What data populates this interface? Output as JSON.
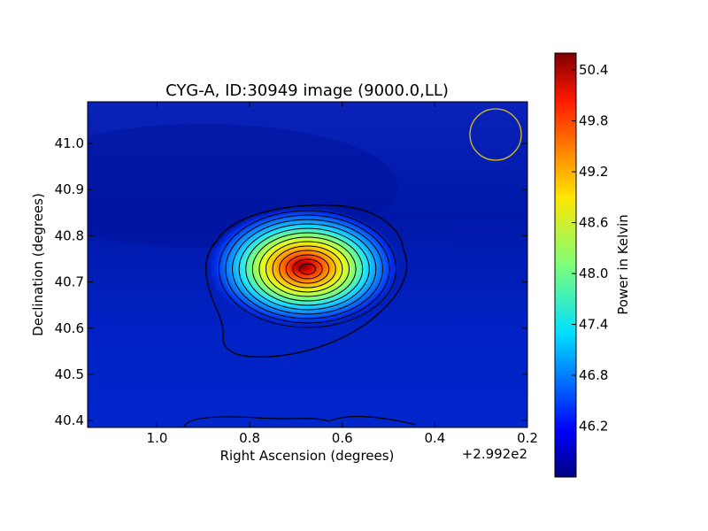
{
  "chart_data": {
    "type": "heatmap",
    "title": "CYG-A, ID:30949 image (9000.0,LL)",
    "xlabel": "Right Ascension (degrees)",
    "ylabel": "Declination (degrees)",
    "x_offset_label": "+2.992e2",
    "xlim": [
      1.15,
      0.2
    ],
    "ylim": [
      40.385,
      41.09
    ],
    "x_ticks": [
      1.0,
      0.8,
      0.6,
      0.4,
      0.2
    ],
    "x_tick_labels": [
      "1.0",
      "0.8",
      "0.6",
      "0.4",
      "0.2"
    ],
    "y_ticks": [
      40.4,
      40.5,
      40.6,
      40.7,
      40.8,
      40.9,
      41.0
    ],
    "y_tick_labels": [
      "40.4",
      "40.5",
      "40.6",
      "40.7",
      "40.8",
      "40.9",
      "41.0"
    ],
    "source": {
      "ra": 0.675,
      "dec": 40.728,
      "peak_kelvin": 50.6
    },
    "background_kelvin": 46.0,
    "contour_count": 13,
    "colormap": "jet",
    "beam_circle_color": "#d4c21a",
    "colorbar": {
      "label": "Power in Kelvin",
      "range": [
        45.6,
        50.6
      ],
      "ticks": [
        46.2,
        46.8,
        47.4,
        48.0,
        48.6,
        49.2,
        49.8,
        50.4
      ],
      "tick_labels": [
        "46.2",
        "46.8",
        "47.4",
        "48.0",
        "48.6",
        "49.2",
        "49.8",
        "50.4"
      ]
    }
  }
}
